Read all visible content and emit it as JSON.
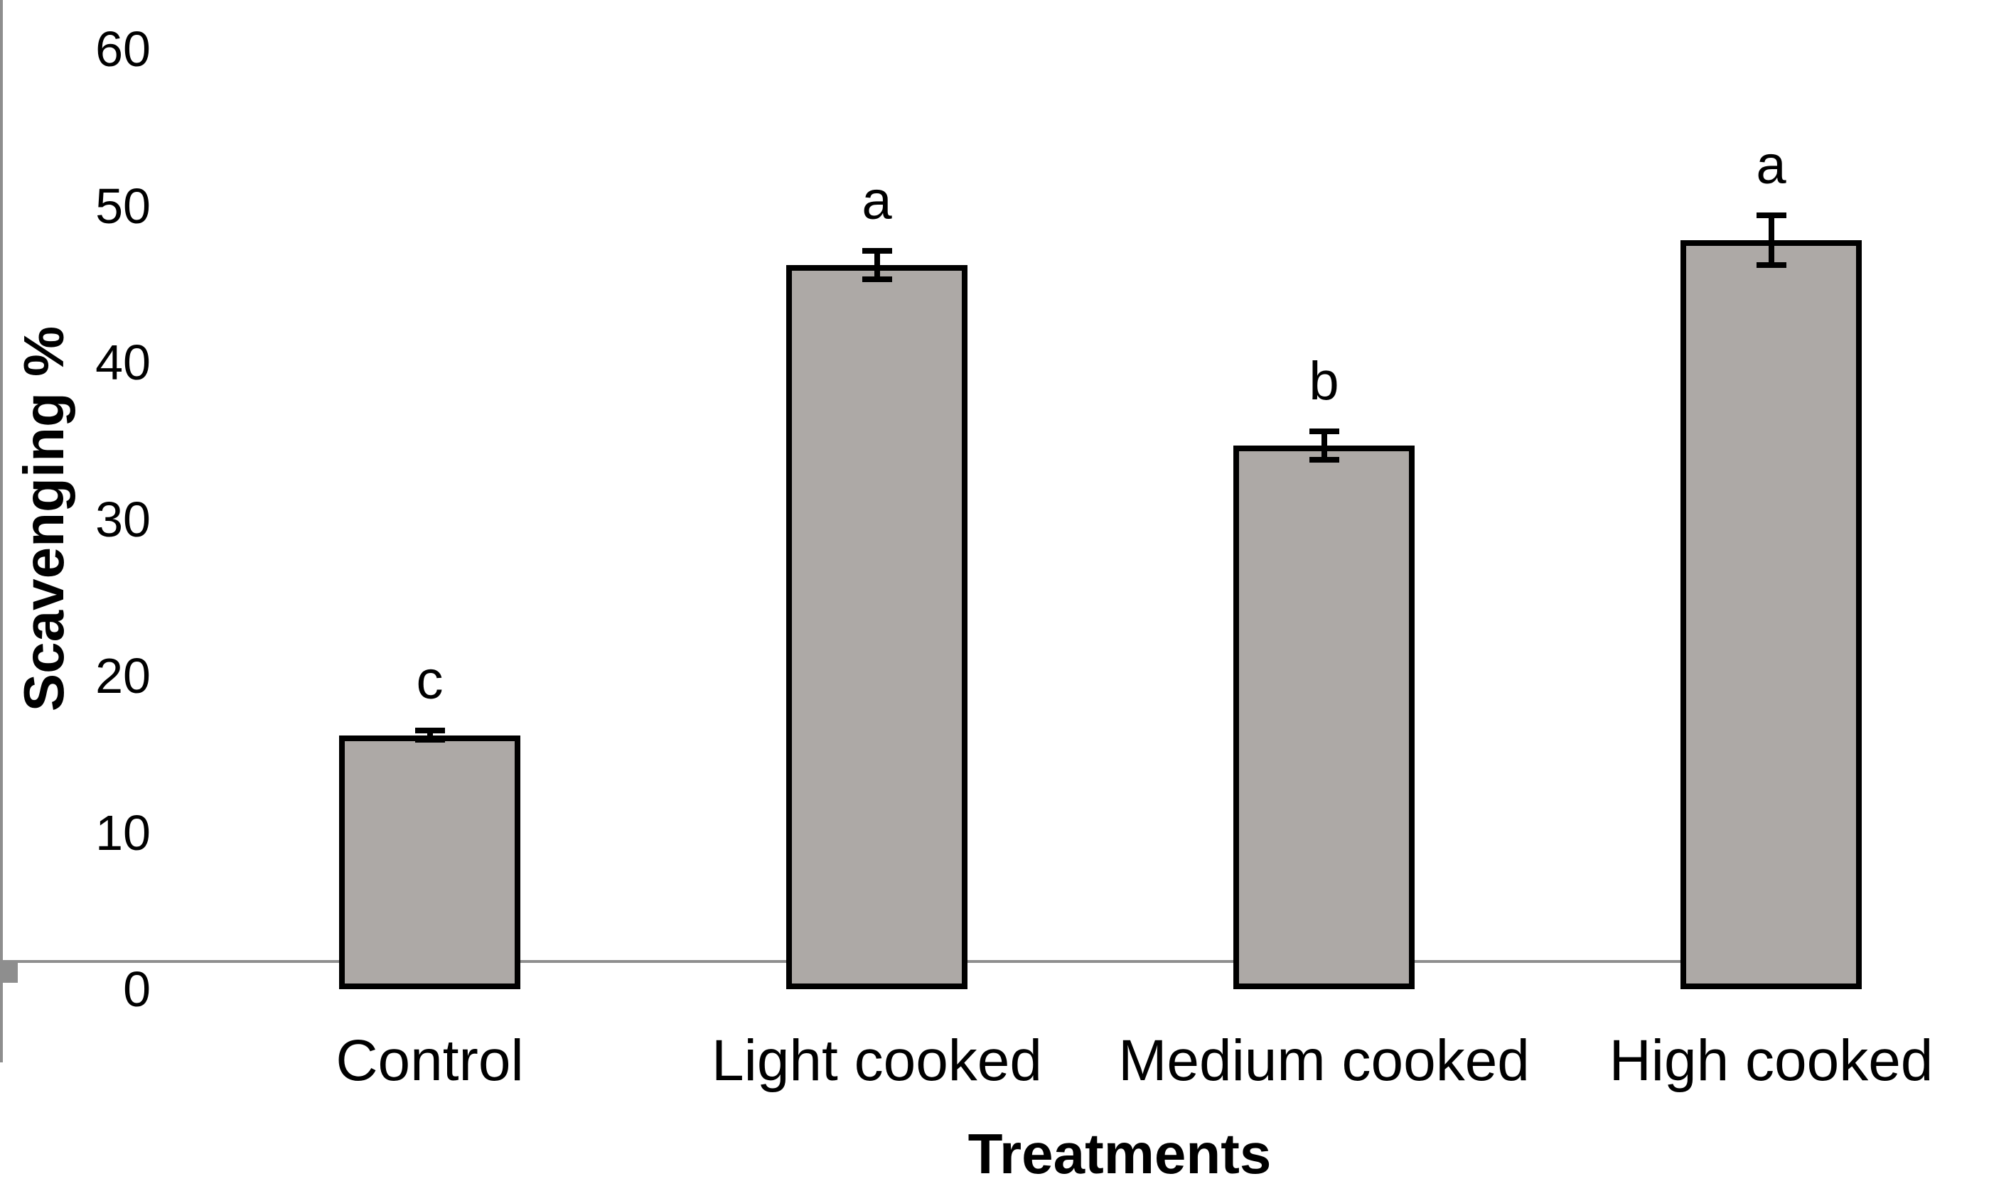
{
  "chart_data": {
    "type": "bar",
    "categories": [
      "Control",
      "Light cooked",
      "Medium cooked",
      "High cooked"
    ],
    "values": [
      16.2,
      46.2,
      34.7,
      47.8
    ],
    "errors": [
      0.3,
      0.9,
      0.9,
      1.6
    ],
    "sig_letters": [
      "c",
      "a",
      "b",
      "a"
    ],
    "title": "",
    "xlabel": "Treatments",
    "ylabel": "Scavenging %",
    "ylim": [
      0,
      60
    ],
    "yticks": [
      0,
      10,
      20,
      30,
      40,
      50,
      60
    ],
    "grid": false,
    "legend": false,
    "bar_fill": "#ADA9A6",
    "bar_border": "#000000",
    "axis_color": "#8E8E8E",
    "text_color": "#000000"
  }
}
